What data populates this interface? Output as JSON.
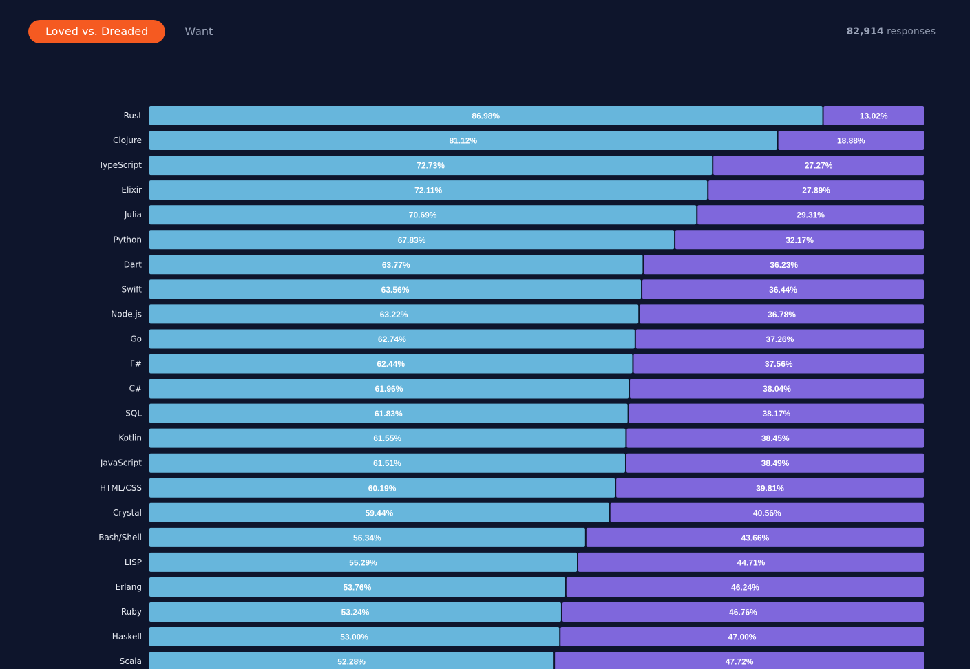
{
  "tabs": [
    {
      "label": "Loved vs. Dreaded",
      "active": true
    },
    {
      "label": "Want",
      "active": false
    }
  ],
  "responses": {
    "count": "82,914",
    "label": "responses"
  },
  "colors": {
    "background": "#0e152c",
    "loved": "#67b6dc",
    "dreaded": "#7f67dc",
    "active_tab": "#f55a21"
  },
  "chart_data": {
    "type": "bar",
    "orientation": "horizontal",
    "stacked": true,
    "xlim": [
      0,
      100
    ],
    "grid": false,
    "categories": [
      "Rust",
      "Clojure",
      "TypeScript",
      "Elixir",
      "Julia",
      "Python",
      "Dart",
      "Swift",
      "Node.js",
      "Go",
      "F#",
      "C#",
      "SQL",
      "Kotlin",
      "JavaScript",
      "HTML/CSS",
      "Crystal",
      "Bash/Shell",
      "LISP",
      "Erlang",
      "Ruby",
      "Haskell",
      "Scala"
    ],
    "series": [
      {
        "key": "loved",
        "values": [
          86.98,
          81.12,
          72.73,
          72.11,
          70.69,
          67.83,
          63.77,
          63.56,
          63.22,
          62.74,
          62.44,
          61.96,
          61.83,
          61.55,
          61.51,
          60.19,
          59.44,
          56.34,
          55.29,
          53.76,
          53.24,
          53.0,
          52.28
        ]
      },
      {
        "key": "dreaded",
        "values": [
          13.02,
          18.88,
          27.27,
          27.89,
          29.31,
          32.17,
          36.23,
          36.44,
          36.78,
          37.26,
          37.56,
          38.04,
          38.17,
          38.45,
          38.49,
          39.81,
          40.56,
          43.66,
          44.71,
          46.24,
          46.76,
          47.0,
          47.72
        ]
      }
    ],
    "labels": {
      "loved": [
        "86.98%",
        "81.12%",
        "72.73%",
        "72.11%",
        "70.69%",
        "67.83%",
        "63.77%",
        "63.56%",
        "63.22%",
        "62.74%",
        "62.44%",
        "61.96%",
        "61.83%",
        "61.55%",
        "61.51%",
        "60.19%",
        "59.44%",
        "56.34%",
        "55.29%",
        "53.76%",
        "53.24%",
        "53.00%",
        "52.28%"
      ],
      "dreaded": [
        "13.02%",
        "18.88%",
        "27.27%",
        "27.89%",
        "29.31%",
        "32.17%",
        "36.23%",
        "36.44%",
        "36.78%",
        "37.26%",
        "37.56%",
        "38.04%",
        "38.17%",
        "38.45%",
        "38.49%",
        "39.81%",
        "40.56%",
        "43.66%",
        "44.71%",
        "46.24%",
        "46.76%",
        "47.00%",
        "47.72%"
      ]
    }
  }
}
